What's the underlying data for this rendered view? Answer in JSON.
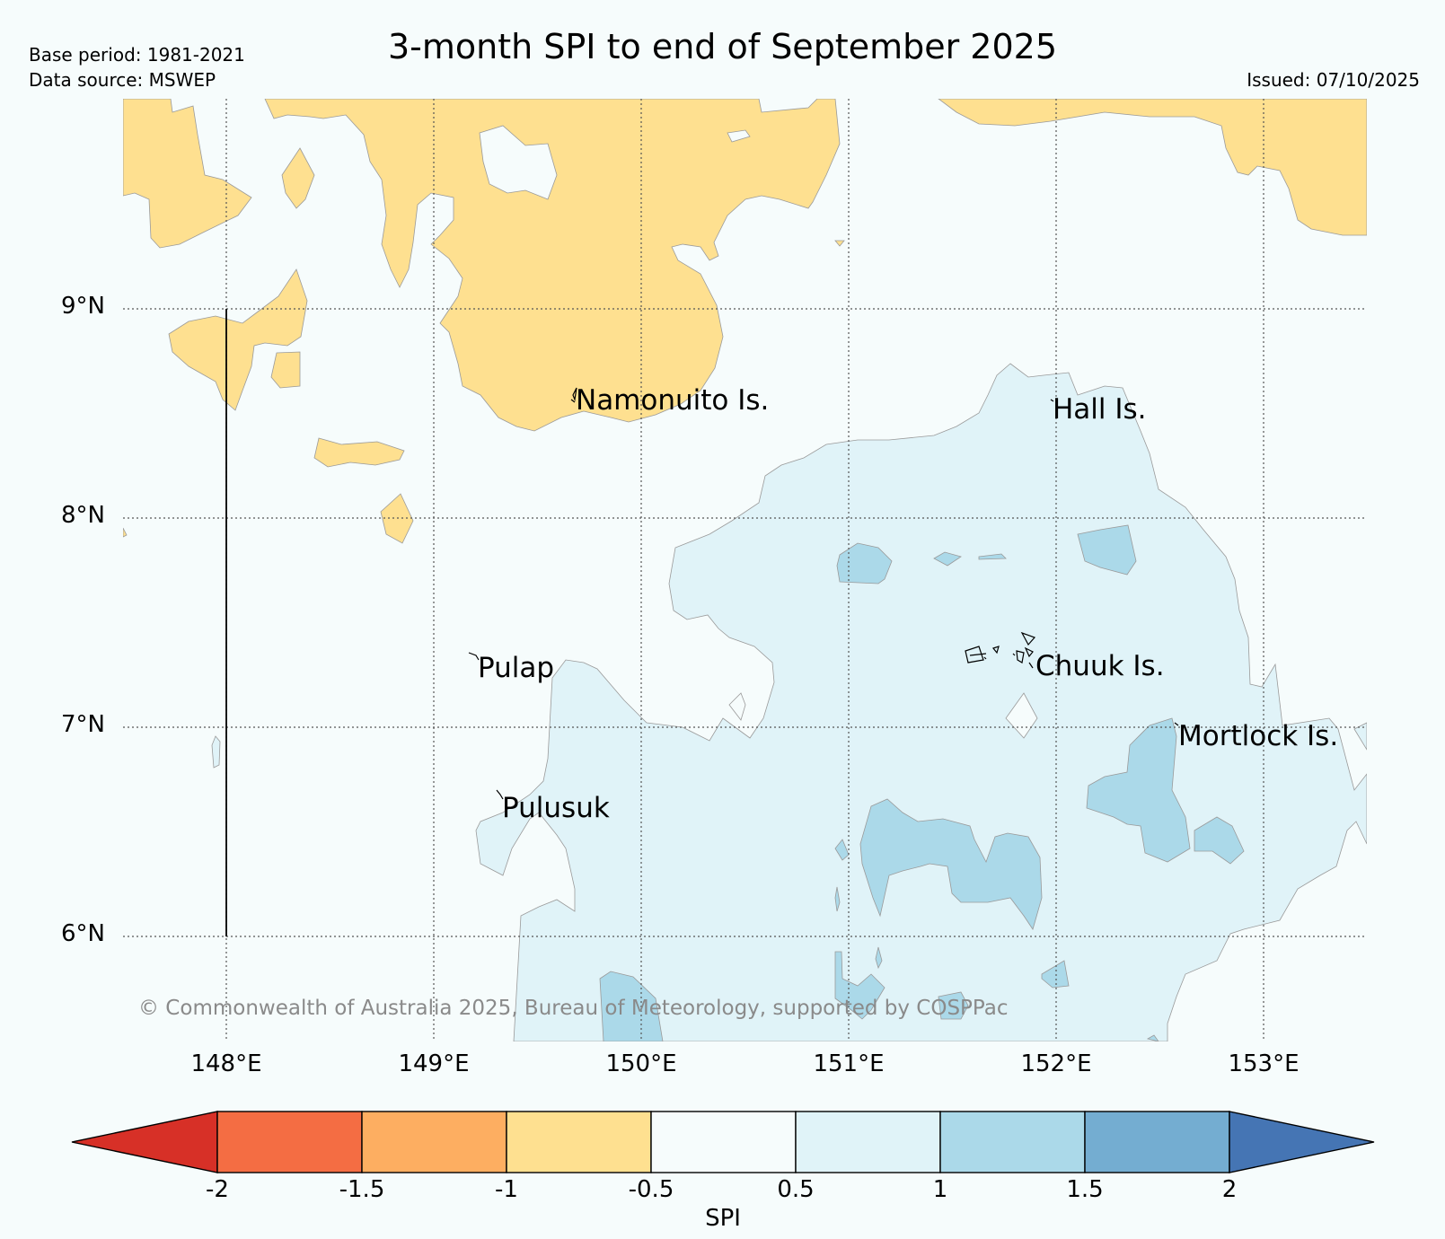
{
  "title": "3-month SPI to end of September 2025",
  "meta": {
    "base_period": "Base period: 1981-2021",
    "data_source": "Data source: MSWEP",
    "issued": "Issued: 07/10/2025"
  },
  "lat_labels": [
    "9°N",
    "8°N",
    "7°N",
    "6°N"
  ],
  "lon_labels": [
    "148°E",
    "149°E",
    "150°E",
    "151°E",
    "152°E",
    "153°E"
  ],
  "places": {
    "namonuito": "Namonuito Is.",
    "hall": "Hall Is.",
    "pulap": "Pulap",
    "chuuk": "Chuuk Is.",
    "mortlock": "Mortlock Is.",
    "pulusuk": "Pulusuk"
  },
  "copyright": "© Commonwealth of Australia 2025, Bureau of Meteorology, supported by COSPPac",
  "colorbar": {
    "label": "SPI",
    "ticks": [
      "-2",
      "-1.5",
      "-1",
      "-0.5",
      "0.5",
      "1",
      "1.5",
      "2"
    ],
    "colors": {
      "lt_-2": "#d73027",
      "-2_-1.5": "#f46d43",
      "-1.5_-1": "#fdae61",
      "-1_-0.5": "#fee090",
      "-0.5_0.5": "#f6fcfc",
      "0.5_1": "#e0f3f8",
      "1_1.5": "#abd9e9",
      "1.5_2": "#74add1",
      "gt_2": "#4575b4"
    }
  }
}
